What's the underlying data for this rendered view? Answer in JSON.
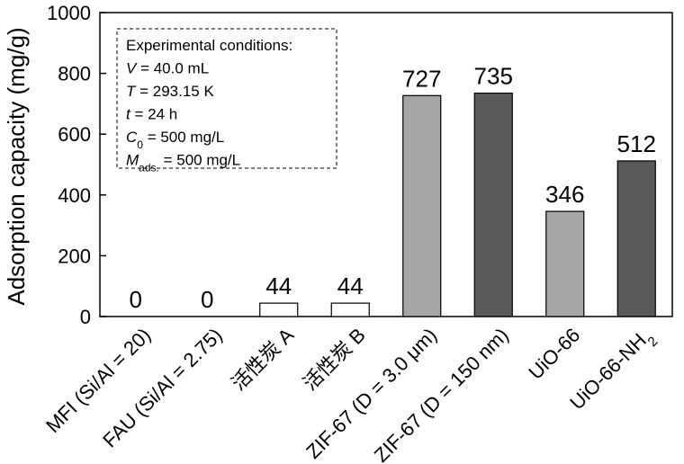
{
  "chart_data": {
    "type": "bar",
    "ylabel": "Adsorption capacity (mg/g)",
    "ylim": [
      0,
      1000
    ],
    "yticks": [
      0,
      200,
      400,
      600,
      800,
      1000
    ],
    "categories": [
      {
        "text": "MFI (Si/Al = 20)"
      },
      {
        "text": "FAU (Si/Al = 2.75)"
      },
      {
        "text": "活性炭 A"
      },
      {
        "text": "活性炭 B"
      },
      {
        "text": "ZIF-67 (D = 3.0 μm)"
      },
      {
        "text": "ZIF-67 (D = 150 nm)"
      },
      {
        "text": "UiO-66"
      },
      {
        "text": "UiO-66-NH",
        "sub": "2"
      }
    ],
    "values": [
      0,
      0,
      44,
      44,
      727,
      735,
      346,
      512
    ],
    "value_labels": [
      "0",
      "0",
      "44",
      "44",
      "727",
      "735",
      "346",
      "512"
    ],
    "bar_colors": [
      "#ffffff",
      "#ffffff",
      "#ffffff",
      "#ffffff",
      "#a6a6a6",
      "#595959",
      "#a6a6a6",
      "#595959"
    ],
    "annotation": {
      "title": "Experimental conditions:",
      "lines": [
        {
          "sym": "V",
          "sub": "",
          "rest": " = 40.0 mL"
        },
        {
          "sym": "T",
          "sub": "",
          "rest": " = 293.15 K"
        },
        {
          "sym": "t",
          "sub": "",
          "rest": " = 24 h"
        },
        {
          "sym": "C",
          "sub": "0",
          "rest": " = 500 mg/L"
        },
        {
          "sym": "M",
          "sub": "ads.",
          "rest": " = 500 mg/L"
        }
      ]
    },
    "grid": false,
    "legend": "none"
  }
}
